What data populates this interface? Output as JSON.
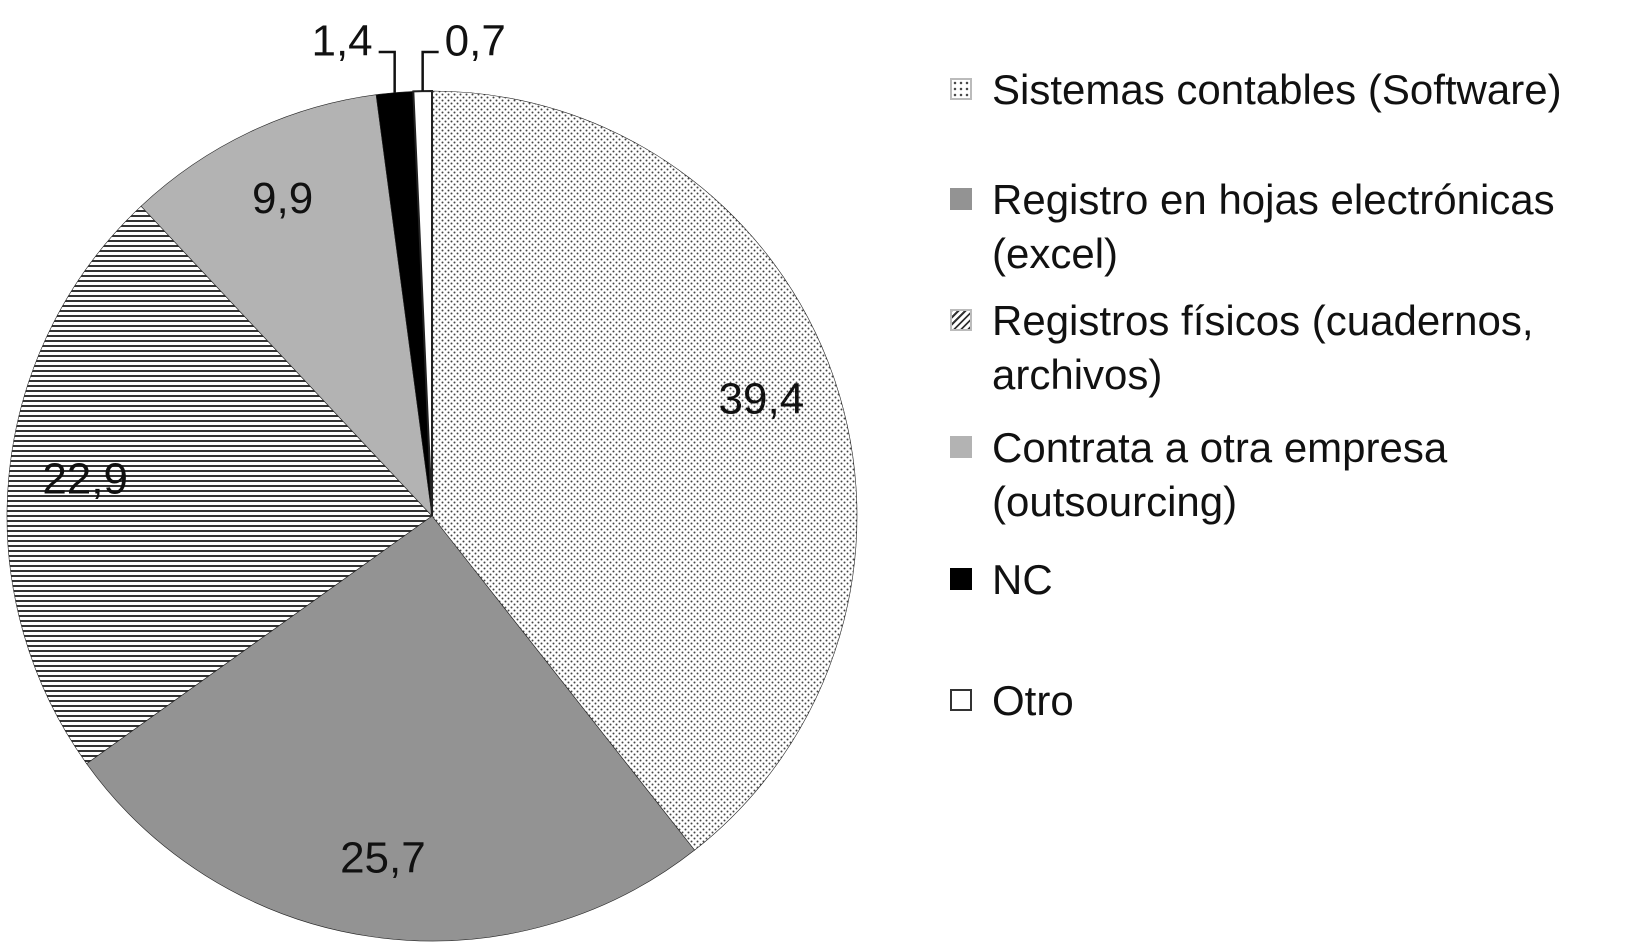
{
  "chart_data": {
    "type": "pie",
    "categories": [
      "Sistemas contables (Software)",
      "Registro en hojas electrónicas (excel)",
      "Registros físicos (cuadernos, archivos)",
      "Contrata a otra empresa (outsourcing)",
      "NC",
      "Otro"
    ],
    "values": [
      39.4,
      25.7,
      22.9,
      9.9,
      1.4,
      0.7
    ],
    "value_labels": [
      "39,4",
      "25,7",
      "22,9",
      "9,9",
      "1,4",
      "0,7"
    ],
    "fills": [
      "dots",
      "#939393",
      "hatch",
      "#b3b3b3",
      "#000000",
      "#ffffff"
    ]
  }
}
